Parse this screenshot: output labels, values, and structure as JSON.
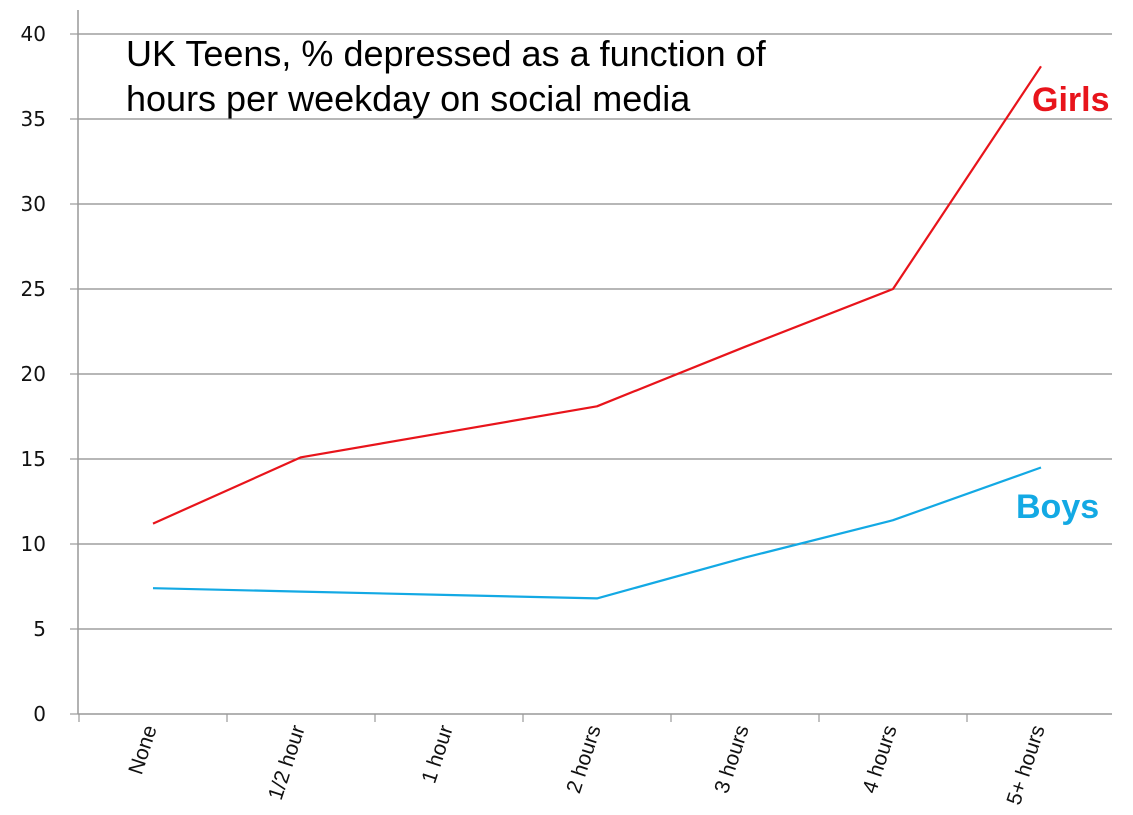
{
  "chart_data": {
    "type": "line",
    "title_lines": [
      "UK Teens, % depressed as a function of",
      "hours per weekday on social media"
    ],
    "categories": [
      "None",
      "1/2 hour",
      "1 hour",
      "2 hours",
      "3 hours",
      "4 hours",
      "5+ hours"
    ],
    "ylim": [
      0,
      40
    ],
    "yticks": [
      0,
      5,
      10,
      15,
      20,
      25,
      30,
      35,
      40
    ],
    "grid": true,
    "series": [
      {
        "name": "Girls",
        "color": "#e8141b",
        "values": [
          11.2,
          15.1,
          16.6,
          18.1,
          21.6,
          25.0,
          38.1
        ]
      },
      {
        "name": "Boys",
        "color": "#13a9e4",
        "values": [
          7.4,
          7.2,
          7.0,
          6.8,
          9.2,
          11.4,
          14.5
        ]
      }
    ]
  }
}
